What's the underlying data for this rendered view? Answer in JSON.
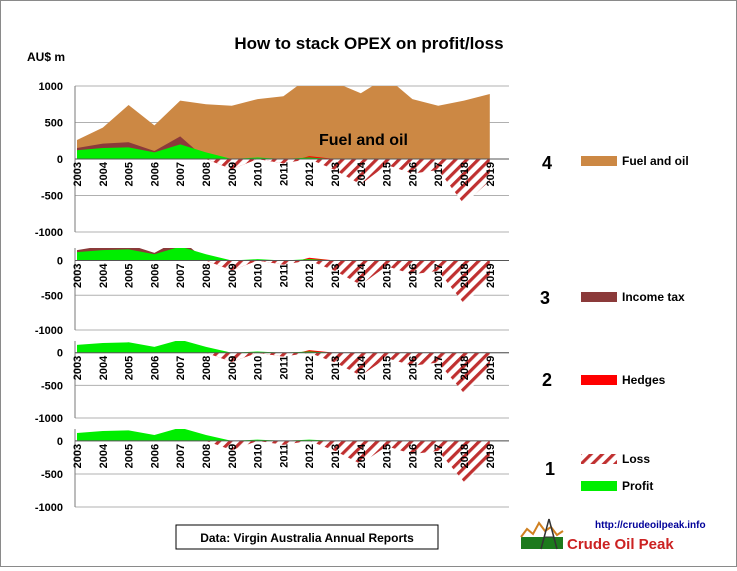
{
  "title": "How to stack  OPEX on profit/loss",
  "unit_label": "AU$ m",
  "source_note": "Data: Virgin Australia Annual Reports",
  "logo": {
    "url": "http://crudeoilpeak.info",
    "brand": "Crude Oil Peak"
  },
  "colors": {
    "fuel": "#cc8844",
    "income_tax": "#8b3a3a",
    "hedges": "#ff0000",
    "loss": "#c03030",
    "profit": "#00ee00",
    "gridline": "#b0b0b0"
  },
  "chart_data": [
    {
      "type": "area",
      "panel_label": "4",
      "annotation": "Fuel and oil",
      "x": [
        "2003",
        "2004",
        "2005",
        "2006",
        "2007",
        "2008",
        "2009",
        "2010",
        "2011",
        "2012",
        "2013",
        "2014",
        "2015",
        "2016",
        "2017",
        "2018",
        "2019"
      ],
      "y_ticks": [
        1000,
        500,
        0,
        -500,
        -1000
      ],
      "ylim": [
        -1000,
        1000
      ],
      "series": [
        {
          "name": "Fuel and oil",
          "role": "fuel",
          "values": [
            260,
            430,
            740,
            460,
            800,
            750,
            730,
            820,
            860,
            1120,
            1050,
            900,
            1120,
            820,
            730,
            800,
            890
          ]
        },
        {
          "name": "",
          "role": "tax",
          "values": [
            150,
            210,
            230,
            110,
            310,
            0,
            0,
            0,
            0,
            0,
            0,
            0,
            0,
            0,
            0,
            0,
            0
          ]
        },
        {
          "name": "",
          "role": "hedges",
          "values": [
            0,
            0,
            0,
            0,
            0,
            0,
            -140,
            0,
            -60,
            40,
            0,
            0,
            0,
            0,
            0,
            0,
            0
          ]
        },
        {
          "name": "",
          "role": "loss",
          "values": [
            0,
            0,
            0,
            0,
            0,
            0,
            -140,
            0,
            -60,
            0,
            -150,
            -350,
            -80,
            -200,
            -150,
            -620,
            -300
          ]
        },
        {
          "name": "",
          "role": "profit",
          "values": [
            120,
            150,
            160,
            90,
            200,
            90,
            0,
            20,
            0,
            20,
            0,
            0,
            0,
            0,
            0,
            0,
            0
          ]
        }
      ],
      "legend": [
        {
          "label": "Fuel and oil",
          "role": "fuel"
        }
      ]
    },
    {
      "type": "area",
      "panel_label": "3",
      "x": [
        "2003",
        "2004",
        "2005",
        "2006",
        "2007",
        "2008",
        "2009",
        "2010",
        "2011",
        "2012",
        "2013",
        "2014",
        "2015",
        "2016",
        "2017",
        "2018",
        "2019"
      ],
      "y_ticks": [
        0,
        -500,
        -1000
      ],
      "ylim": [
        -1000,
        180
      ],
      "series": [
        {
          "name": "",
          "role": "tax",
          "values": [
            150,
            210,
            230,
            110,
            310,
            0,
            0,
            0,
            0,
            0,
            0,
            0,
            0,
            0,
            0,
            0,
            0
          ]
        },
        {
          "name": "",
          "role": "hedges",
          "values": [
            0,
            0,
            0,
            0,
            0,
            0,
            -140,
            0,
            -60,
            40,
            0,
            0,
            0,
            0,
            0,
            0,
            0
          ]
        },
        {
          "name": "",
          "role": "loss",
          "values": [
            0,
            0,
            0,
            0,
            0,
            0,
            -140,
            0,
            -60,
            0,
            -150,
            -350,
            -80,
            -200,
            -150,
            -620,
            -300
          ]
        },
        {
          "name": "",
          "role": "profit",
          "values": [
            120,
            150,
            160,
            90,
            200,
            90,
            0,
            20,
            0,
            20,
            0,
            0,
            0,
            0,
            0,
            0,
            0
          ]
        }
      ],
      "legend": [
        {
          "label": "Income tax",
          "role": "tax"
        }
      ]
    },
    {
      "type": "area",
      "panel_label": "2",
      "x": [
        "2003",
        "2004",
        "2005",
        "2006",
        "2007",
        "2008",
        "2009",
        "2010",
        "2011",
        "2012",
        "2013",
        "2014",
        "2015",
        "2016",
        "2017",
        "2018",
        "2019"
      ],
      "y_ticks": [
        0,
        -500,
        -1000
      ],
      "ylim": [
        -1000,
        180
      ],
      "series": [
        {
          "name": "",
          "role": "hedges",
          "values": [
            0,
            0,
            0,
            0,
            0,
            0,
            -140,
            0,
            -60,
            40,
            0,
            0,
            0,
            0,
            0,
            0,
            0
          ]
        },
        {
          "name": "",
          "role": "loss",
          "values": [
            0,
            0,
            0,
            0,
            0,
            0,
            -140,
            0,
            -60,
            0,
            -150,
            -350,
            -80,
            -200,
            -150,
            -620,
            -300
          ]
        },
        {
          "name": "",
          "role": "profit",
          "values": [
            120,
            150,
            160,
            90,
            200,
            90,
            0,
            20,
            0,
            20,
            0,
            0,
            0,
            0,
            0,
            0,
            0
          ]
        }
      ],
      "legend": [
        {
          "label": "Hedges",
          "role": "hedges"
        }
      ]
    },
    {
      "type": "area",
      "panel_label": "1",
      "x": [
        "2003",
        "2004",
        "2005",
        "2006",
        "2007",
        "2008",
        "2009",
        "2010",
        "2011",
        "2012",
        "2013",
        "2014",
        "2015",
        "2016",
        "2017",
        "2018",
        "2019"
      ],
      "y_ticks": [
        0,
        -500,
        -1000
      ],
      "ylim": [
        -1000,
        180
      ],
      "series": [
        {
          "name": "",
          "role": "loss",
          "values": [
            0,
            0,
            0,
            0,
            0,
            0,
            -140,
            0,
            -60,
            0,
            -150,
            -350,
            -80,
            -200,
            -150,
            -620,
            -300
          ]
        },
        {
          "name": "",
          "role": "profit",
          "values": [
            120,
            150,
            160,
            90,
            200,
            90,
            0,
            20,
            0,
            20,
            0,
            0,
            0,
            0,
            0,
            0,
            0
          ]
        }
      ],
      "legend": [
        {
          "label": "Loss",
          "role": "loss"
        },
        {
          "label": "Profit",
          "role": "profit"
        }
      ]
    }
  ]
}
